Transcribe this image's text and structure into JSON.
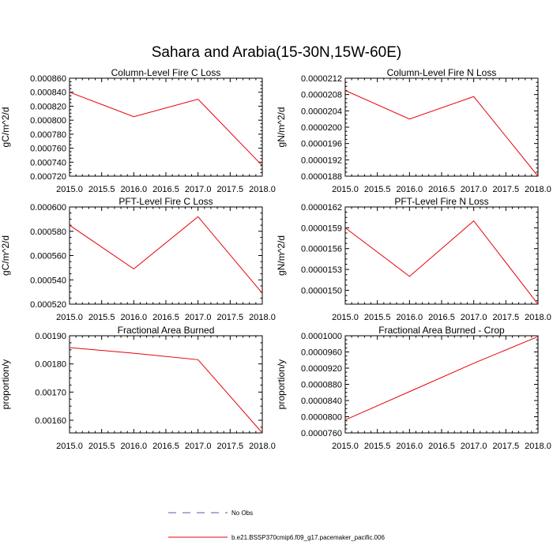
{
  "figure_title": "Sahara and Arabia(15-30N,15W-60E)",
  "legend": {
    "entries": [
      {
        "label": "No Obs",
        "style": "dashed",
        "color": "#5a5ab4"
      },
      {
        "label": "b.e21.BSSP370cmip6.f09_g17.pacemaker_pacific.006",
        "style": "solid",
        "color": "#e8000b"
      }
    ]
  },
  "colors": {
    "series": "#e8000b",
    "axis": "#000000",
    "obs": "#5a5ab4"
  },
  "chart_data": [
    {
      "type": "line",
      "title": "Column-Level Fire C Loss",
      "ylabel": "gC/m^2/d",
      "xlim": [
        2015.0,
        2018.0
      ],
      "ylim": [
        0.00072,
        0.00086
      ],
      "xticks": [
        "2015.0",
        "2015.5",
        "2016.0",
        "2016.5",
        "2017.0",
        "2017.5",
        "2018.0"
      ],
      "yticks": [
        {
          "value": 0.00072,
          "label": "0.000720"
        },
        {
          "value": 0.00074,
          "label": "0.000740"
        },
        {
          "value": 0.00076,
          "label": "0.000760"
        },
        {
          "value": 0.00078,
          "label": "0.000780"
        },
        {
          "value": 0.0008,
          "label": "0.000800"
        },
        {
          "value": 0.00082,
          "label": "0.000820"
        },
        {
          "value": 0.00084,
          "label": "0.000840"
        },
        {
          "value": 0.00086,
          "label": "0.000860"
        }
      ],
      "series": [
        {
          "name": "b.e21.BSSP370cmip6.f09_g17.pacemaker_pacific.006",
          "x": [
            2015,
            2016,
            2017,
            2018
          ],
          "y": [
            0.00084,
            0.000805,
            0.00083,
            0.000735
          ]
        }
      ]
    },
    {
      "type": "line",
      "title": "Column-Level Fire N Loss",
      "ylabel": "gN/m^2/d",
      "xlim": [
        2015.0,
        2018.0
      ],
      "ylim": [
        1.88e-05,
        2.12e-05
      ],
      "xticks": [
        "2015.0",
        "2015.5",
        "2016.0",
        "2016.5",
        "2017.0",
        "2017.5",
        "2018.0"
      ],
      "yticks": [
        {
          "value": 1.88e-05,
          "label": "0.0000188"
        },
        {
          "value": 1.92e-05,
          "label": "0.0000192"
        },
        {
          "value": 1.96e-05,
          "label": "0.0000196"
        },
        {
          "value": 2e-05,
          "label": "0.0000200"
        },
        {
          "value": 2.04e-05,
          "label": "0.0000204"
        },
        {
          "value": 2.08e-05,
          "label": "0.0000208"
        },
        {
          "value": 2.12e-05,
          "label": "0.0000212"
        }
      ],
      "series": [
        {
          "name": "b.e21.BSSP370cmip6.f09_g17.pacemaker_pacific.006",
          "x": [
            2015,
            2016,
            2017,
            2018
          ],
          "y": [
            2.09e-05,
            2.02e-05,
            2.075e-05,
            1.88e-05
          ]
        }
      ]
    },
    {
      "type": "line",
      "title": "PFT-Level Fire C Loss",
      "ylabel": "gC/m^2/d",
      "xlim": [
        2015.0,
        2018.0
      ],
      "ylim": [
        0.00052,
        0.0006
      ],
      "xticks": [
        "2015.0",
        "2015.5",
        "2016.0",
        "2016.5",
        "2017.0",
        "2017.5",
        "2018.0"
      ],
      "yticks": [
        {
          "value": 0.00052,
          "label": "0.000520"
        },
        {
          "value": 0.00054,
          "label": "0.000540"
        },
        {
          "value": 0.00056,
          "label": "0.000560"
        },
        {
          "value": 0.00058,
          "label": "0.000580"
        },
        {
          "value": 0.0006,
          "label": "0.000600"
        }
      ],
      "series": [
        {
          "name": "b.e21.BSSP370cmip6.f09_g17.pacemaker_pacific.006",
          "x": [
            2015,
            2016,
            2017,
            2018
          ],
          "y": [
            0.000585,
            0.000549,
            0.000592,
            0.000529
          ]
        }
      ]
    },
    {
      "type": "line",
      "title": "PFT-Level Fire N Loss",
      "ylabel": "gN/m^2/d",
      "xlim": [
        2015.0,
        2018.0
      ],
      "ylim": [
        1.48e-05,
        1.62e-05
      ],
      "xticks": [
        "2015.0",
        "2015.5",
        "2016.0",
        "2016.5",
        "2017.0",
        "2017.5",
        "2018.0"
      ],
      "yticks": [
        {
          "value": 1.5e-05,
          "label": "0.0000150"
        },
        {
          "value": 1.53e-05,
          "label": "0.0000153"
        },
        {
          "value": 1.56e-05,
          "label": "0.0000156"
        },
        {
          "value": 1.59e-05,
          "label": "0.0000159"
        },
        {
          "value": 1.62e-05,
          "label": "0.0000162"
        }
      ],
      "series": [
        {
          "name": "b.e21.BSSP370cmip6.f09_g17.pacemaker_pacific.006",
          "x": [
            2015,
            2016,
            2017,
            2018
          ],
          "y": [
            1.59e-05,
            1.52e-05,
            1.6e-05,
            1.48e-05
          ]
        }
      ]
    },
    {
      "type": "line",
      "title": "Fractional Area Burned",
      "ylabel": "proportion/y",
      "xlim": [
        2015.0,
        2018.0
      ],
      "ylim": [
        0.001555,
        0.0019
      ],
      "xticks": [
        "2015.0",
        "2015.5",
        "2016.0",
        "2016.5",
        "2017.0",
        "2017.5",
        "2018.0"
      ],
      "yticks": [
        {
          "value": 0.0016,
          "label": "0.00160"
        },
        {
          "value": 0.0017,
          "label": "0.00170"
        },
        {
          "value": 0.0018,
          "label": "0.00180"
        },
        {
          "value": 0.0019,
          "label": "0.00190"
        }
      ],
      "series": [
        {
          "name": "b.e21.BSSP370cmip6.f09_g17.pacemaker_pacific.006",
          "x": [
            2015,
            2016,
            2017,
            2018
          ],
          "y": [
            0.001858,
            0.001838,
            0.001815,
            0.001555
          ]
        }
      ]
    },
    {
      "type": "line",
      "title": "Fractional Area Burned - Crop",
      "ylabel": "proportion/y",
      "xlim": [
        2015.0,
        2018.0
      ],
      "ylim": [
        7.6e-05,
        0.0001
      ],
      "xticks": [
        "2015.0",
        "2015.5",
        "2016.0",
        "2016.5",
        "2017.0",
        "2017.5",
        "2018.0"
      ],
      "yticks": [
        {
          "value": 7.6e-05,
          "label": "0.0000760"
        },
        {
          "value": 8e-05,
          "label": "0.0000800"
        },
        {
          "value": 8.4e-05,
          "label": "0.0000840"
        },
        {
          "value": 8.8e-05,
          "label": "0.0000880"
        },
        {
          "value": 9.2e-05,
          "label": "0.0000920"
        },
        {
          "value": 9.6e-05,
          "label": "0.0000960"
        },
        {
          "value": 0.0001,
          "label": "0.0001000"
        }
      ],
      "series": [
        {
          "name": "b.e21.BSSP370cmip6.f09_g17.pacemaker_pacific.006",
          "x": [
            2015,
            2016,
            2017,
            2018
          ],
          "y": [
            7.92e-05,
            8.62e-05,
            9.32e-05,
            9.98e-05
          ]
        }
      ]
    }
  ]
}
